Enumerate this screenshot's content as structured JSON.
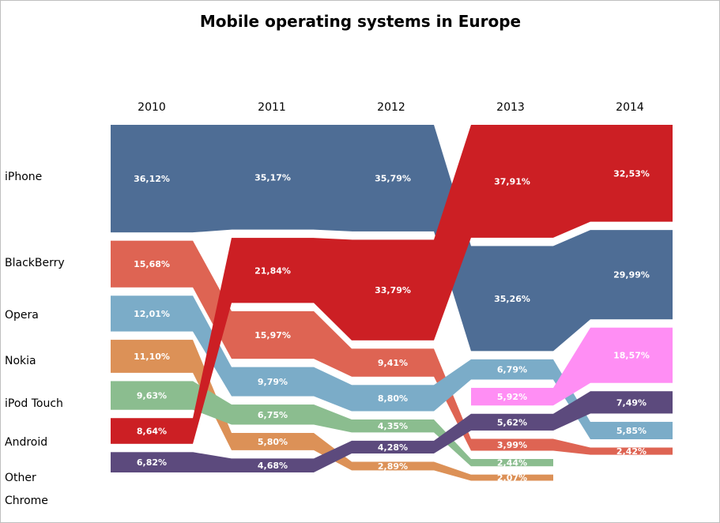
{
  "chart_data": {
    "type": "ribbon-rank",
    "title": "Mobile operating systems in Europe",
    "years": [
      "2010",
      "2011",
      "2012",
      "2013",
      "2014"
    ],
    "row_labels": [
      "iPhone",
      "BlackBerry",
      "Opera",
      "Nokia",
      "iPod Touch",
      "Android",
      "Other",
      "Chrome"
    ],
    "series": [
      {
        "name": "iPhone",
        "color": "#4e6d95",
        "values": [
          36.12,
          35.17,
          35.79,
          35.26,
          29.99
        ],
        "labels": [
          "36,12%",
          "35,17%",
          "35,79%",
          "35,26%",
          "29,99%"
        ]
      },
      {
        "name": "BlackBerry",
        "color": "#de6453",
        "values": [
          15.68,
          15.97,
          9.41,
          3.99,
          2.42
        ],
        "labels": [
          "15,68%",
          "15,97%",
          "9,41%",
          "3,99%",
          "2,42%"
        ]
      },
      {
        "name": "Opera",
        "color": "#7bacc8",
        "values": [
          12.01,
          9.79,
          8.8,
          6.79,
          5.85
        ],
        "labels": [
          "12,01%",
          "9,79%",
          "8,80%",
          "6,79%",
          "5,85%"
        ]
      },
      {
        "name": "Nokia",
        "color": "#dc9157",
        "values": [
          11.1,
          5.8,
          2.89,
          2.07,
          null
        ],
        "labels": [
          "11,10%",
          "5,80%",
          "2,89%",
          "2,07%",
          ""
        ]
      },
      {
        "name": "iPod Touch",
        "color": "#8bbd8f",
        "values": [
          9.63,
          6.75,
          4.35,
          2.44,
          null
        ],
        "labels": [
          "9,63%",
          "6,75%",
          "4,35%",
          "2,44%",
          ""
        ]
      },
      {
        "name": "Android",
        "color": "#cc1f24",
        "values": [
          8.64,
          21.84,
          33.79,
          37.91,
          32.53
        ],
        "labels": [
          "8,64%",
          "21,84%",
          "33,79%",
          "37,91%",
          "32,53%"
        ]
      },
      {
        "name": "Other",
        "color": "#5c4a7d",
        "values": [
          6.82,
          4.68,
          4.28,
          5.62,
          7.49
        ],
        "labels": [
          "6,82%",
          "4,68%",
          "4,28%",
          "5,62%",
          "7,49%"
        ]
      },
      {
        "name": "Chrome",
        "color": "#ff8ef4",
        "values": [
          null,
          null,
          null,
          5.92,
          18.57
        ],
        "labels": [
          "",
          "",
          "",
          "5,92%",
          "18,57%"
        ]
      }
    ]
  }
}
